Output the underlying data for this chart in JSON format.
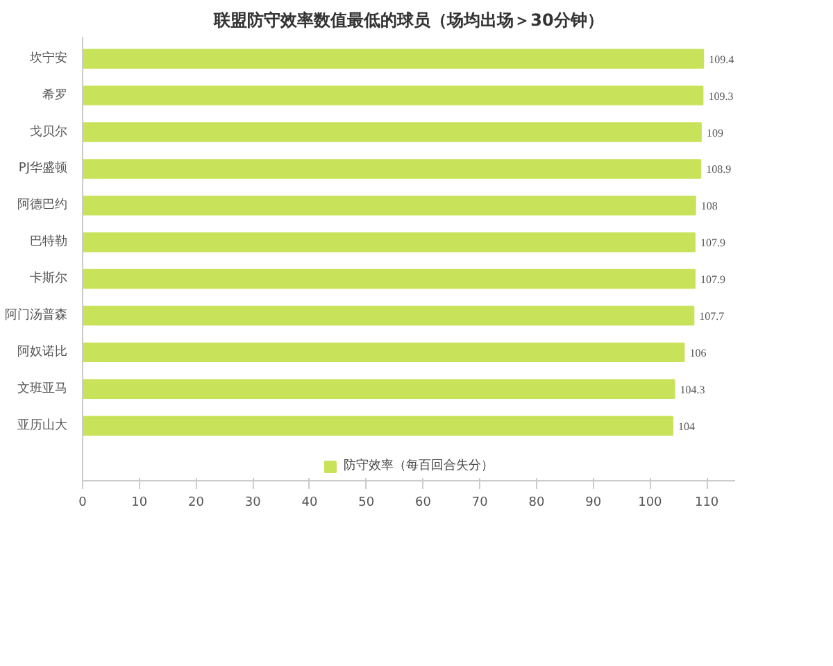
{
  "chart_data": {
    "type": "bar",
    "orientation": "horizontal",
    "title": "联盟防守效率数值最低的球员（场均出场＞30分钟）",
    "categories": [
      "坎宁安",
      "希罗",
      "戈贝尔",
      "PJ华盛顿",
      "阿德巴约",
      "巴特勒",
      "卡斯尔",
      "阿门汤普森",
      "阿奴诺比",
      "文班亚马",
      "亚历山大"
    ],
    "series": [
      {
        "name": "防守效率（每百回合失分）",
        "color": "#c8e35a",
        "values": [
          109.4,
          109.3,
          109,
          108.9,
          108,
          107.9,
          107.9,
          107.7,
          106,
          104.3,
          104
        ]
      }
    ],
    "xlim": [
      0,
      115
    ],
    "xticks": [
      0,
      10,
      20,
      30,
      40,
      50,
      60,
      70,
      80,
      90,
      100,
      110
    ],
    "data_labels": true,
    "legend": "bottom",
    "grid": false
  }
}
